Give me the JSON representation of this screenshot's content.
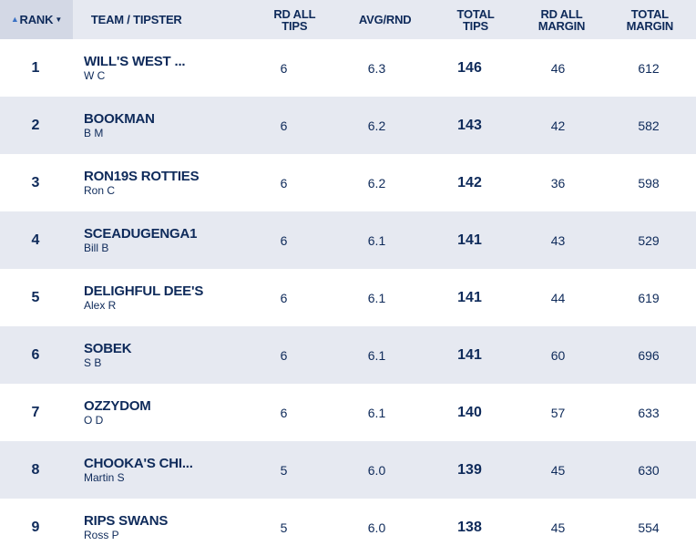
{
  "header": {
    "rank": "RANK",
    "team": "TEAM / TIPSTER",
    "rd_all_tips": [
      "RD ALL",
      "TIPS"
    ],
    "avg_rnd": "AVG/RND",
    "total_tips": [
      "TOTAL",
      "TIPS"
    ],
    "rd_all_margin": [
      "RD ALL",
      "MARGIN"
    ],
    "total_margin": [
      "TOTAL",
      "MARGIN"
    ]
  },
  "icons": {
    "rank_sort": "sort-ascending-icon",
    "rank_dropdown": "chevron-down-icon"
  },
  "colors": {
    "text": "#0e2a5a",
    "header_bg": "#e6e9f1",
    "rank_header_bg": "#d3d8e5",
    "alt_row_bg": "#e6e9f1",
    "sort_accent": "#3b72c4"
  },
  "rows": [
    {
      "rank": "1",
      "team": "WILL'S WEST ...",
      "tipster": "W C",
      "rd_all_tips": "6",
      "avg_rnd": "6.3",
      "total_tips": "146",
      "rd_all_margin": "46",
      "total_margin": "612"
    },
    {
      "rank": "2",
      "team": "BOOKMAN",
      "tipster": "B M",
      "rd_all_tips": "6",
      "avg_rnd": "6.2",
      "total_tips": "143",
      "rd_all_margin": "42",
      "total_margin": "582"
    },
    {
      "rank": "3",
      "team": "RON19S ROTTIES",
      "tipster": "Ron C",
      "rd_all_tips": "6",
      "avg_rnd": "6.2",
      "total_tips": "142",
      "rd_all_margin": "36",
      "total_margin": "598"
    },
    {
      "rank": "4",
      "team": "SCEADUGENGA1",
      "tipster": "Bill B",
      "rd_all_tips": "6",
      "avg_rnd": "6.1",
      "total_tips": "141",
      "rd_all_margin": "43",
      "total_margin": "529"
    },
    {
      "rank": "5",
      "team": "DELIGHFUL DEE'S",
      "tipster": "Alex R",
      "rd_all_tips": "6",
      "avg_rnd": "6.1",
      "total_tips": "141",
      "rd_all_margin": "44",
      "total_margin": "619"
    },
    {
      "rank": "6",
      "team": "SOBEK",
      "tipster": "S B",
      "rd_all_tips": "6",
      "avg_rnd": "6.1",
      "total_tips": "141",
      "rd_all_margin": "60",
      "total_margin": "696"
    },
    {
      "rank": "7",
      "team": "OZZYDOM",
      "tipster": "O D",
      "rd_all_tips": "6",
      "avg_rnd": "6.1",
      "total_tips": "140",
      "rd_all_margin": "57",
      "total_margin": "633"
    },
    {
      "rank": "8",
      "team": "CHOOKA'S CHI...",
      "tipster": "Martin S",
      "rd_all_tips": "5",
      "avg_rnd": "6.0",
      "total_tips": "139",
      "rd_all_margin": "45",
      "total_margin": "630"
    },
    {
      "rank": "9",
      "team": "RIPS SWANS",
      "tipster": "Ross P",
      "rd_all_tips": "5",
      "avg_rnd": "6.0",
      "total_tips": "138",
      "rd_all_margin": "45",
      "total_margin": "554"
    }
  ]
}
